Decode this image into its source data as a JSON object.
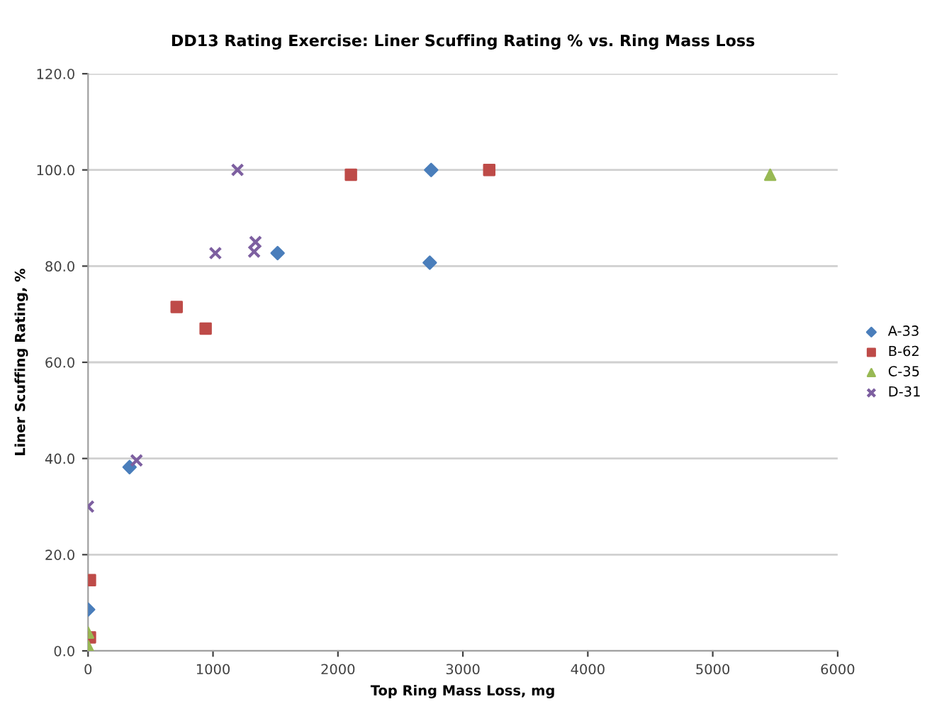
{
  "chart_data": {
    "type": "scatter",
    "title": "DD13 Rating Exercise: Liner Scuffing Rating % vs. Ring Mass Loss",
    "xlabel": "Top Ring Mass Loss, mg",
    "ylabel": "Liner Scuffing Rating, %",
    "series": [
      {
        "name": "A-33",
        "color": "#4a7ebb",
        "marker": "diamond",
        "x": [
          0,
          332,
          1517,
          2746,
          2735
        ],
        "values": [
          8.6,
          38.2,
          82.7,
          100,
          80.7
        ]
      },
      {
        "name": "B-62",
        "color": "#be4b48",
        "marker": "square",
        "x": [
          15,
          15,
          709,
          941,
          2104,
          3211
        ],
        "values": [
          14.7,
          2.8,
          71.5,
          67,
          99,
          100
        ]
      },
      {
        "name": "C-35",
        "color": "#98b954",
        "marker": "triangle",
        "x": [
          0,
          0,
          0,
          5460
        ],
        "values": [
          3.8,
          1,
          0.3,
          99
        ]
      },
      {
        "name": "D-31",
        "color": "#7d5fa0",
        "marker": "cross",
        "x": [
          0,
          388,
          1019,
          1196,
          1340,
          1329
        ],
        "values": [
          30,
          39.6,
          82.7,
          100,
          85,
          83
        ]
      }
    ],
    "xlim": [
      0,
      6000
    ],
    "xticks": [
      0,
      1000,
      2000,
      3000,
      4000,
      5000,
      6000
    ],
    "ylim": [
      0,
      120
    ],
    "yticks": [
      {
        "value": 0,
        "label": "0.0"
      },
      {
        "value": 20,
        "label": "20.0"
      },
      {
        "value": 40,
        "label": "40.0"
      },
      {
        "value": 60,
        "label": "60.0"
      },
      {
        "value": 80,
        "label": "80.0"
      },
      {
        "value": 100,
        "label": "100.0"
      },
      {
        "value": 120,
        "label": "120.0"
      }
    ],
    "grid": "y",
    "legend": "right"
  }
}
